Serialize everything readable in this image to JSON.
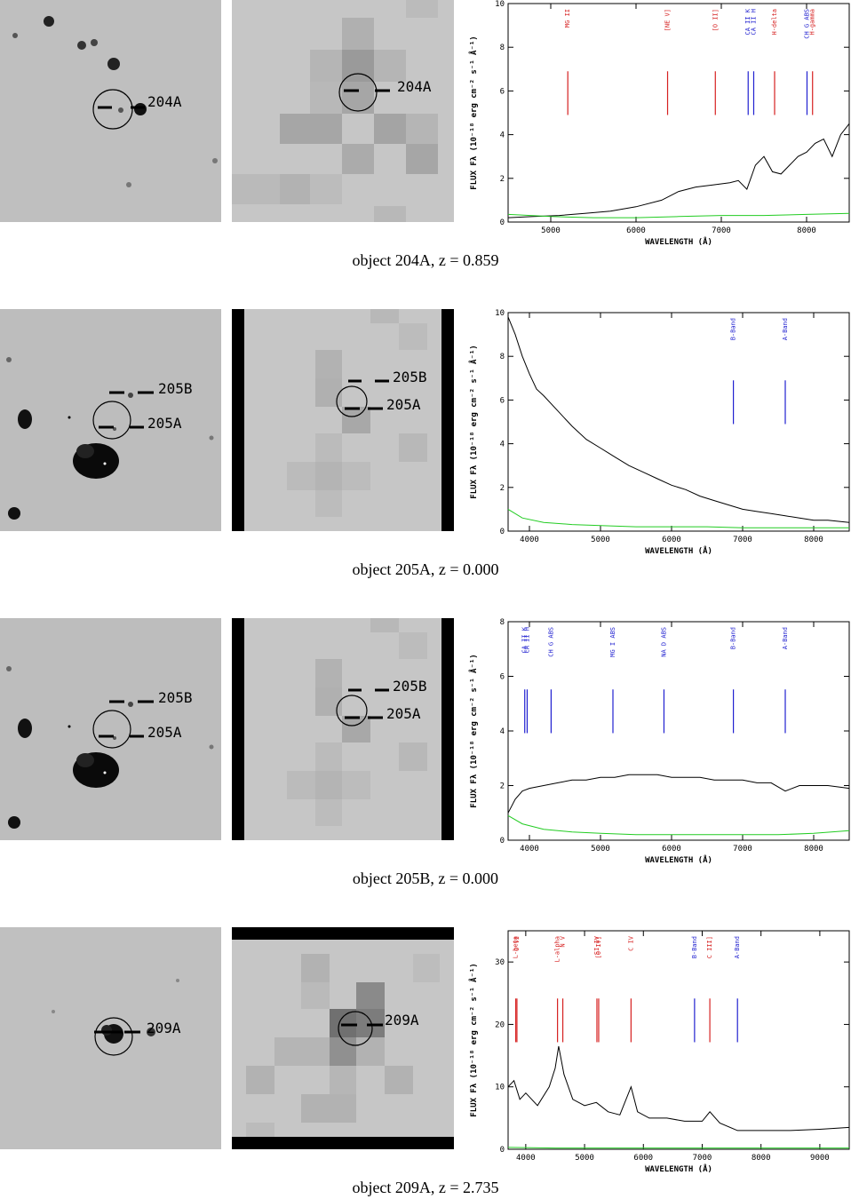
{
  "panels": [
    {
      "caption": "object 204A, z = 0.859",
      "optical_labels": [
        "204A"
      ],
      "xray_labels": [
        "204A"
      ],
      "chart_data": {
        "type": "line",
        "xlabel": "WAVELENGTH (Å)",
        "ylabel": "FLUX Fλ (10⁻¹⁸ erg cm⁻² s⁻¹ Å⁻¹)",
        "xlim": [
          4500,
          8500
        ],
        "ylim": [
          0,
          10
        ],
        "xticks": [
          5000,
          6000,
          7000,
          8000
        ],
        "yticks": [
          0,
          2,
          4,
          6,
          8,
          10
        ],
        "lines": [
          {
            "label": "MG II",
            "x": 5200,
            "color": "#d62020"
          },
          {
            "label": "[NE V]",
            "x": 6370,
            "color": "#d62020"
          },
          {
            "label": "[O II]",
            "x": 6930,
            "color": "#d62020"
          },
          {
            "label": "CA II K",
            "x": 7315,
            "color": "#2020d0"
          },
          {
            "label": "CA II H",
            "x": 7380,
            "color": "#2020d0"
          },
          {
            "label": "H-delta",
            "x": 7625,
            "color": "#d62020"
          },
          {
            "label": "CH G ABS",
            "x": 8005,
            "color": "#2020d0"
          },
          {
            "label": "H-gamma",
            "x": 8070,
            "color": "#d62020"
          }
        ],
        "series": [
          {
            "color": "#000000",
            "x": [
              4500,
              4800,
              5100,
              5400,
              5700,
              6000,
              6300,
              6500,
              6700,
              6900,
              7100,
              7200,
              7300,
              7400,
              7500,
              7600,
              7700,
              7800,
              7900,
              8000,
              8100,
              8200,
              8300,
              8400,
              8500
            ],
            "y": [
              0.2,
              0.25,
              0.3,
              0.4,
              0.5,
              0.7,
              1.0,
              1.4,
              1.6,
              1.7,
              1.8,
              1.9,
              1.5,
              2.6,
              3.0,
              2.3,
              2.2,
              2.6,
              3.0,
              3.2,
              3.6,
              3.8,
              3.0,
              4.0,
              4.5
            ]
          },
          {
            "color": "#22cc22",
            "x": [
              4500,
              5000,
              5500,
              6000,
              6500,
              7000,
              7500,
              8000,
              8500
            ],
            "y": [
              0.35,
              0.25,
              0.2,
              0.2,
              0.25,
              0.3,
              0.3,
              0.35,
              0.4
            ]
          }
        ]
      }
    },
    {
      "caption": "object 205A, z = 0.000",
      "optical_labels": [
        "205B",
        "205A"
      ],
      "xray_labels": [
        "205B",
        "205A"
      ],
      "chart_data": {
        "type": "line",
        "xlabel": "WAVELENGTH (Å)",
        "ylabel": "FLUX Fλ (10⁻¹⁸ erg cm⁻² s⁻¹ Å⁻¹)",
        "xlim": [
          3700,
          8500
        ],
        "ylim": [
          0,
          10
        ],
        "xticks": [
          4000,
          5000,
          6000,
          7000,
          8000
        ],
        "yticks": [
          0,
          2,
          4,
          6,
          8,
          10
        ],
        "lines": [
          {
            "label": "B-Band",
            "x": 6870,
            "color": "#2020d0"
          },
          {
            "label": "A-Band",
            "x": 7600,
            "color": "#2020d0"
          }
        ],
        "series": [
          {
            "color": "#000000",
            "x": [
              3700,
              3800,
              3900,
              4000,
              4100,
              4200,
              4400,
              4600,
              4800,
              5000,
              5200,
              5400,
              5600,
              5800,
              6000,
              6200,
              6400,
              6600,
              6800,
              7000,
              7200,
              7400,
              7600,
              7800,
              8000,
              8200,
              8500
            ],
            "y": [
              9.8,
              9.0,
              8.0,
              7.2,
              6.5,
              6.2,
              5.5,
              4.8,
              4.2,
              3.8,
              3.4,
              3.0,
              2.7,
              2.4,
              2.1,
              1.9,
              1.6,
              1.4,
              1.2,
              1.0,
              0.9,
              0.8,
              0.7,
              0.6,
              0.5,
              0.5,
              0.4
            ]
          },
          {
            "color": "#22cc22",
            "x": [
              3700,
              3900,
              4200,
              4600,
              5000,
              5500,
              6000,
              6500,
              7000,
              7500,
              8000,
              8500
            ],
            "y": [
              1.0,
              0.6,
              0.4,
              0.3,
              0.25,
              0.2,
              0.2,
              0.2,
              0.15,
              0.15,
              0.15,
              0.15
            ]
          }
        ]
      }
    },
    {
      "caption": "object 205B, z = 0.000",
      "optical_labels": [
        "205B",
        "205A"
      ],
      "xray_labels": [
        "205B",
        "205A"
      ],
      "chart_data": {
        "type": "line",
        "xlabel": "WAVELENGTH (Å)",
        "ylabel": "FLUX Fλ (10⁻¹⁸ erg cm⁻² s⁻¹ Å⁻¹)",
        "xlim": [
          3700,
          8500
        ],
        "ylim": [
          0,
          8
        ],
        "xticks": [
          4000,
          5000,
          6000,
          7000,
          8000
        ],
        "yticks": [
          0,
          2,
          4,
          6,
          8
        ],
        "lines": [
          {
            "label": "CA II K",
            "x": 3934,
            "color": "#2020d0"
          },
          {
            "label": "CA II H",
            "x": 3968,
            "color": "#2020d0"
          },
          {
            "label": "CH G ABS",
            "x": 4305,
            "color": "#2020d0"
          },
          {
            "label": "MG I ABS",
            "x": 5175,
            "color": "#2020d0"
          },
          {
            "label": "NA D ABS",
            "x": 5893,
            "color": "#2020d0"
          },
          {
            "label": "B-Band",
            "x": 6870,
            "color": "#2020d0"
          },
          {
            "label": "A-Band",
            "x": 7600,
            "color": "#2020d0"
          }
        ],
        "series": [
          {
            "color": "#000000",
            "x": [
              3700,
              3800,
              3900,
              4000,
              4200,
              4400,
              4600,
              4800,
              5000,
              5200,
              5400,
              5600,
              5800,
              6000,
              6200,
              6400,
              6600,
              6800,
              7000,
              7200,
              7400,
              7600,
              7800,
              8000,
              8200,
              8500
            ],
            "y": [
              1.0,
              1.5,
              1.8,
              1.9,
              2.0,
              2.1,
              2.2,
              2.2,
              2.3,
              2.3,
              2.4,
              2.4,
              2.4,
              2.3,
              2.3,
              2.3,
              2.2,
              2.2,
              2.2,
              2.1,
              2.1,
              1.8,
              2.0,
              2.0,
              2.0,
              1.9
            ]
          },
          {
            "color": "#22cc22",
            "x": [
              3700,
              3900,
              4200,
              4600,
              5000,
              5500,
              6000,
              6500,
              7000,
              7500,
              8000,
              8500
            ],
            "y": [
              0.9,
              0.6,
              0.4,
              0.3,
              0.25,
              0.2,
              0.2,
              0.2,
              0.2,
              0.2,
              0.25,
              0.35
            ]
          }
        ]
      }
    },
    {
      "caption": "object 209A, z = 2.735",
      "optical_labels": [
        "209A"
      ],
      "xray_labels": [
        "209A"
      ],
      "chart_data": {
        "type": "line",
        "xlabel": "WAVELENGTH (Å)",
        "ylabel": "FLUX Fλ (10⁻¹⁸ erg cm⁻² s⁻¹ Å⁻¹)",
        "xlim": [
          3700,
          9500
        ],
        "ylim": [
          0,
          35
        ],
        "xticks": [
          4000,
          5000,
          6000,
          7000,
          8000,
          9000
        ],
        "yticks": [
          0,
          10,
          20,
          30
        ],
        "lines": [
          {
            "label": "L-beta",
            "x": 3830,
            "color": "#d62020"
          },
          {
            "label": "O VI",
            "x": 3850,
            "color": "#d62020"
          },
          {
            "label": "L-alpha",
            "x": 4540,
            "color": "#d62020"
          },
          {
            "label": "N V",
            "x": 4630,
            "color": "#d62020"
          },
          {
            "label": "SI IV",
            "x": 5210,
            "color": "#d62020"
          },
          {
            "label": "[O IV]",
            "x": 5240,
            "color": "#d62020"
          },
          {
            "label": "C IV",
            "x": 5790,
            "color": "#d62020"
          },
          {
            "label": "B-Band",
            "x": 6870,
            "color": "#2020d0"
          },
          {
            "label": "C III]",
            "x": 7130,
            "color": "#d62020"
          },
          {
            "label": "A-Band",
            "x": 7600,
            "color": "#2020d0"
          }
        ],
        "series": [
          {
            "color": "#000000",
            "x": [
              3700,
              3800,
              3900,
              4000,
              4200,
              4400,
              4500,
              4560,
              4650,
              4800,
              5000,
              5200,
              5400,
              5600,
              5790,
              5900,
              6100,
              6400,
              6700,
              7000,
              7130,
              7300,
              7600,
              8000,
              8500,
              9000,
              9500
            ],
            "y": [
              10,
              11,
              8,
              9,
              7,
              10,
              13,
              16.5,
              12,
              8,
              7,
              7.5,
              6,
              5.5,
              10,
              6,
              5,
              5,
              4.5,
              4.5,
              6,
              4.2,
              3,
              3,
              3,
              3.2,
              3.5
            ]
          },
          {
            "color": "#22cc22",
            "x": [
              3700,
              4500,
              5500,
              6500,
              7500,
              8500,
              9500
            ],
            "y": [
              0.3,
              0.2,
              0.2,
              0.2,
              0.2,
              0.2,
              0.2
            ]
          }
        ]
      }
    }
  ]
}
